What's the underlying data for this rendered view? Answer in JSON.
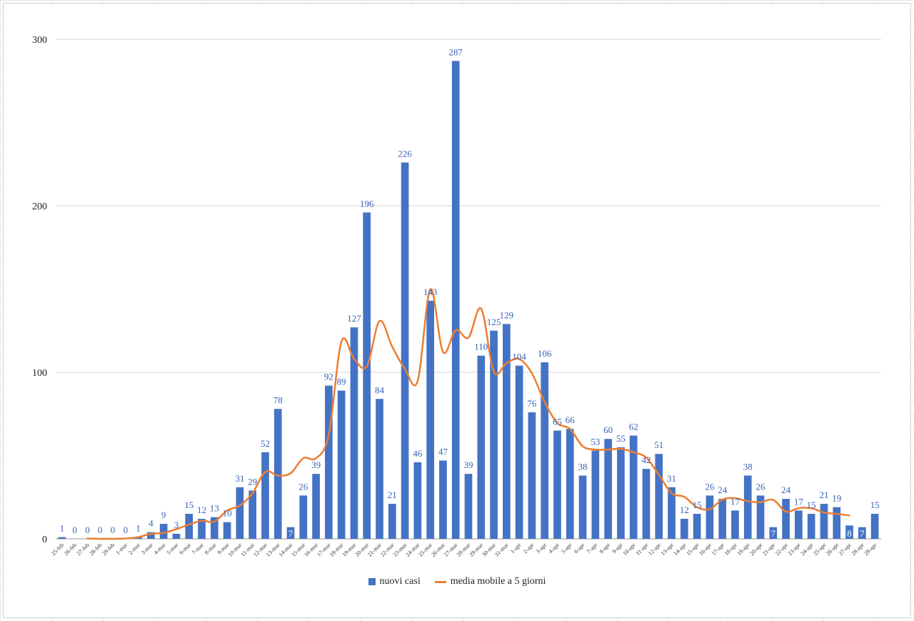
{
  "chart_data": {
    "type": "bar",
    "categories": [
      "25-feb",
      "26-feb",
      "27-feb",
      "28-feb",
      "29-feb",
      "1-mar",
      "2-mar",
      "3-mar",
      "4-mar",
      "5-mar",
      "6-mar",
      "7-mar",
      "8-mar",
      "9-mar",
      "10-mar",
      "11-mar",
      "12-mar",
      "13-mar",
      "14-mar",
      "15-mar",
      "16-mar",
      "17-mar",
      "18-mar",
      "19-mar",
      "20-mar",
      "21-mar",
      "22-mar",
      "23-mar",
      "24-mar",
      "25-mar",
      "26-mar",
      "27-mar",
      "28-mar",
      "29-mar",
      "30-mar",
      "31-mar",
      "1-apr",
      "2-apr",
      "3-apr",
      "4-apr",
      "5-apr",
      "6-apr",
      "7-apr",
      "8-apr",
      "9-apr",
      "10-apr",
      "11-apr",
      "12-apr",
      "13-apr",
      "14-apr",
      "15-apr",
      "16-apr",
      "17-apr",
      "18-apr",
      "19-apr",
      "20-apr",
      "21-apr",
      "22-apr",
      "23-apr",
      "24-apr",
      "25-apr",
      "26-apr",
      "27-apr",
      "28-apr",
      "29-apr"
    ],
    "series": [
      {
        "name": "nuovi casi",
        "type": "bar",
        "color": "#4472c4",
        "values": [
          1,
          0,
          0,
          0,
          0,
          0,
          1,
          4,
          9,
          3,
          15,
          12,
          13,
          10,
          31,
          29,
          52,
          78,
          7,
          26,
          39,
          92,
          89,
          127,
          196,
          84,
          21,
          226,
          46,
          143,
          47,
          287,
          39,
          110,
          125,
          129,
          104,
          76,
          106,
          65,
          66,
          38,
          53,
          60,
          55,
          62,
          42,
          51,
          31,
          12,
          15,
          26,
          24,
          17,
          38,
          26,
          7,
          24,
          17,
          15,
          21,
          19,
          8,
          7,
          15
        ]
      },
      {
        "name": "media mobile a 5 giorni",
        "type": "line",
        "color": "#ed7d31",
        "values": [
          null,
          null,
          0.2,
          0.0,
          0.0,
          0.2,
          1.0,
          3.0,
          3.6,
          5.8,
          8.6,
          10.8,
          10.4,
          17.0,
          20.0,
          27.4,
          40.2,
          38.0,
          39.4,
          48.4,
          48.4,
          62.4,
          118.4,
          108.0,
          103.6,
          130.8,
          115.4,
          102.0,
          94.8,
          149.8,
          112.2,
          125.4,
          120.8,
          138.2,
          100.4,
          105.6,
          108.0,
          99.4,
          82.2,
          69.6,
          66.0,
          55.6,
          53.6,
          53.6,
          54.0,
          52.0,
          48.8,
          38.4,
          27.4,
          25.2,
          19.0,
          17.8,
          23.6,
          24.4,
          22.6,
          22.0,
          23.4,
          16.4,
          18.4,
          18.4,
          15.8,
          15.0,
          14.0,
          null,
          null
        ],
        "smooth": true
      }
    ],
    "ylim": [
      0,
      300
    ],
    "yticks": [
      0,
      100,
      200,
      300
    ],
    "grid": true,
    "legend_position": "bottom-center",
    "title": "",
    "xlabel": "",
    "ylabel": ""
  },
  "legend": {
    "items": [
      {
        "label": "nuovi casi"
      },
      {
        "label": "media mobile a 5 giorni"
      }
    ]
  }
}
